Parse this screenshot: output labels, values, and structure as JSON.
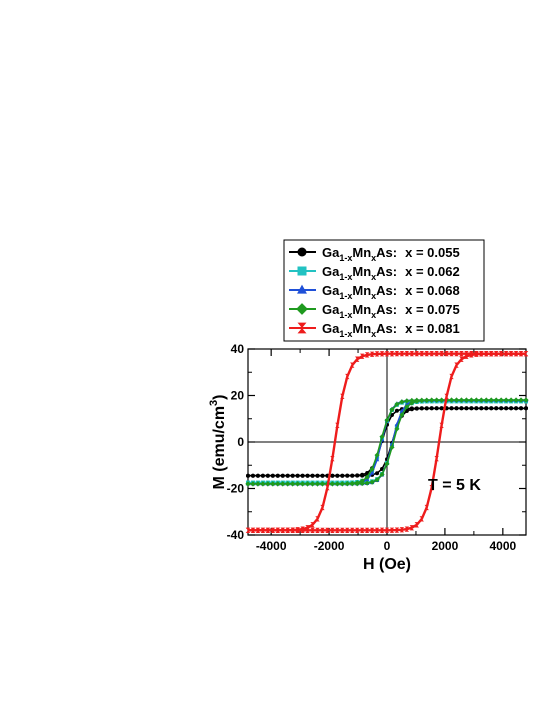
{
  "chart_data": {
    "type": "line",
    "xlabel": "H (Oe)",
    "ylabel": "M (emu/cm",
    "ylabel_sup": "3",
    "ylabel_close": ")",
    "xlim": [
      -4800,
      4800
    ],
    "ylim": [
      -40,
      40
    ],
    "xticks": [
      -4000,
      -2000,
      0,
      2000,
      4000
    ],
    "xtick_labels": [
      "-4000",
      "-2000",
      "0",
      "2000",
      "4000"
    ],
    "yticks": [
      -40,
      -20,
      0,
      20,
      40
    ],
    "ytick_labels": [
      "-40",
      "-20",
      "0",
      "20",
      "40"
    ],
    "annotation": "T = 5 K",
    "legend_placement": "above plot",
    "series": [
      {
        "name": "x = 0.055",
        "legend": {
          "pre": "Ga",
          "sub1": "1-x",
          "mid": "Mn",
          "sub2": "x",
          "post": "As:",
          "value": "x = 0.055"
        },
        "color": "#000000",
        "marker": "circle",
        "ms": 14.5,
        "hc": 180,
        "w": 320
      },
      {
        "name": "x = 0.062",
        "legend": {
          "pre": "Ga",
          "sub1": "1-x",
          "mid": "Mn",
          "sub2": "x",
          "post": "As:",
          "value": "x = 0.062"
        },
        "color": "#22c2c2",
        "marker": "square",
        "ms": 17.5,
        "hc": 200,
        "w": 350
      },
      {
        "name": "x = 0.068",
        "legend": {
          "pre": "Ga",
          "sub1": "1-x",
          "mid": "Mn",
          "sub2": "x",
          "post": "As:",
          "value": "x = 0.068"
        },
        "color": "#1f50d8",
        "marker": "triangle",
        "ms": 18,
        "hc": 190,
        "w": 340
      },
      {
        "name": "x = 0.075",
        "legend": {
          "pre": "Ga",
          "sub1": "1-x",
          "mid": "Mn",
          "sub2": "x",
          "post": "As:",
          "value": "x = 0.075"
        },
        "color": "#1f9a1f",
        "marker": "diamond",
        "ms": 18,
        "hc": 220,
        "w": 380
      },
      {
        "name": "x = 0.081",
        "legend": {
          "pre": "Ga",
          "sub1": "1-x",
          "mid": "Mn",
          "sub2": "x",
          "post": "As:",
          "value": "x = 0.081"
        },
        "color": "#ee1c1c",
        "marker": "hourglass",
        "ms": 38,
        "hc": 1800,
        "w": 450
      }
    ]
  }
}
